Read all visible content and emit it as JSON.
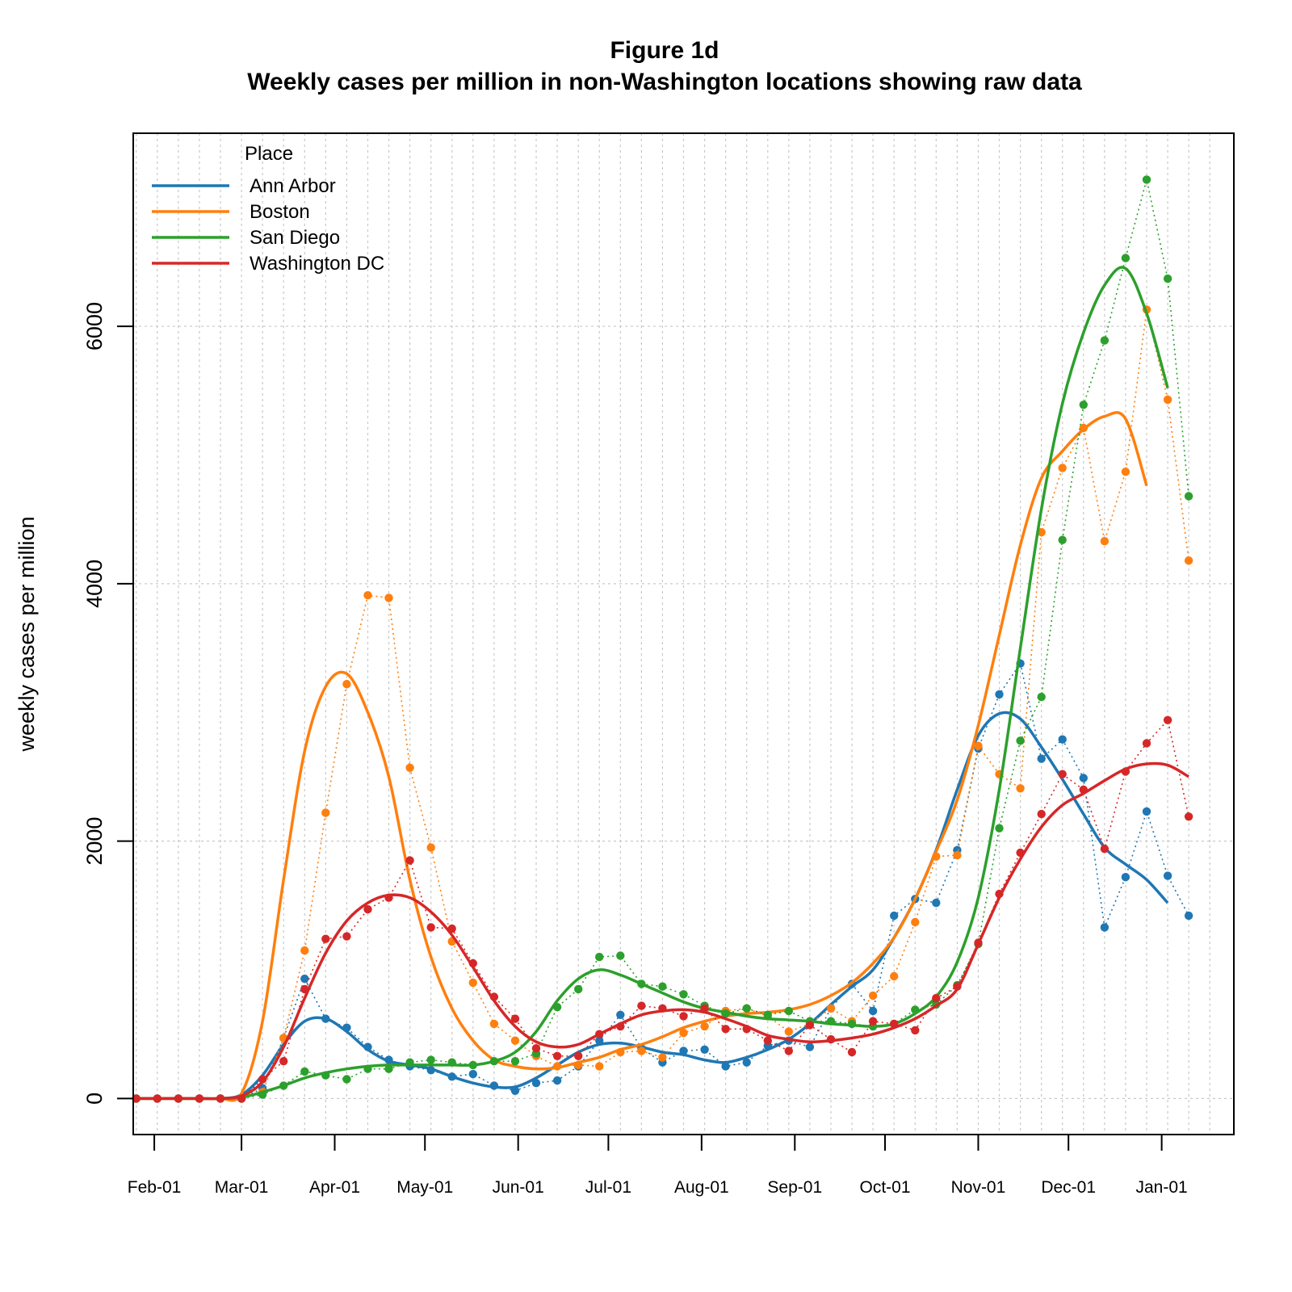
{
  "chart_data": {
    "type": "line",
    "title": "Figure 1d",
    "subtitle": "Weekly cases per million in non-Washington locations showing raw data",
    "xlabel": "",
    "ylabel": "weekly cases per million",
    "ylim": [
      -280,
      7500
    ],
    "yticks": [
      0,
      2000,
      4000,
      6000
    ],
    "xlim": [
      -7,
      359
    ],
    "xtick_labels": [
      "Feb-01",
      "Mar-01",
      "Apr-01",
      "May-01",
      "Jun-01",
      "Jul-01",
      "Aug-01",
      "Sep-01",
      "Oct-01",
      "Nov-01",
      "Dec-01",
      "Jan-01"
    ],
    "xtick_days": [
      0,
      29,
      60,
      90,
      121,
      151,
      182,
      213,
      243,
      274,
      304,
      335
    ],
    "grid": true,
    "legend": {
      "title": "Place",
      "position": "top-left"
    },
    "x_days": [
      -6,
      1,
      8,
      15,
      22,
      29,
      36,
      43,
      50,
      57,
      64,
      71,
      78,
      85,
      92,
      99,
      106,
      113,
      120,
      127,
      134,
      141,
      148,
      155,
      162,
      169,
      176,
      183,
      190,
      197,
      204,
      211,
      218,
      225,
      232,
      239,
      246,
      253,
      260,
      267,
      274,
      281,
      288,
      295,
      302,
      309,
      316,
      323,
      330,
      337,
      344,
      351
    ],
    "series": [
      {
        "name": "Ann Arbor",
        "color": "#1f77b4",
        "raw": [
          0,
          0,
          0,
          0,
          0,
          0,
          80,
          470,
          930,
          620,
          550,
          400,
          300,
          250,
          220,
          170,
          190,
          100,
          60,
          120,
          140,
          250,
          450,
          650,
          390,
          280,
          370,
          380,
          250,
          280,
          410,
          450,
          400,
          700,
          890,
          680,
          1420,
          1550,
          1520,
          1930,
          2720,
          3140,
          3380,
          2640,
          2790,
          2490,
          1330,
          1720,
          2230,
          1730,
          1420,
          null
        ],
        "smooth": [
          0,
          0,
          0,
          0,
          0,
          30,
          180,
          420,
          600,
          620,
          520,
          380,
          290,
          260,
          230,
          170,
          120,
          90,
          90,
          160,
          260,
          360,
          420,
          430,
          400,
          360,
          340,
          300,
          280,
          320,
          380,
          460,
          580,
          730,
          870,
          1000,
          1250,
          1550,
          1930,
          2400,
          2820,
          2990,
          2950,
          2730,
          2480,
          2210,
          1950,
          1820,
          1700,
          1520,
          null,
          null
        ]
      },
      {
        "name": "Boston",
        "color": "#ff7f0e",
        "raw": [
          0,
          0,
          0,
          0,
          0,
          0,
          50,
          470,
          1150,
          2220,
          3220,
          3910,
          3890,
          2570,
          1950,
          1220,
          900,
          580,
          450,
          330,
          250,
          260,
          250,
          360,
          370,
          320,
          510,
          560,
          680,
          700,
          640,
          520,
          580,
          700,
          600,
          800,
          950,
          1370,
          1880,
          1890,
          2740,
          2520,
          2410,
          4400,
          4900,
          5210,
          4330,
          4870,
          6130,
          5430,
          4180,
          null
        ],
        "smooth": [
          0,
          0,
          0,
          0,
          0,
          40,
          600,
          1700,
          2700,
          3200,
          3300,
          3000,
          2500,
          1700,
          1100,
          700,
          450,
          300,
          250,
          230,
          240,
          280,
          320,
          380,
          420,
          480,
          550,
          600,
          640,
          660,
          670,
          690,
          730,
          800,
          900,
          1050,
          1250,
          1550,
          1920,
          2320,
          2900,
          3600,
          4300,
          4820,
          5030,
          5200,
          5300,
          5280,
          4760,
          null,
          null,
          null
        ]
      },
      {
        "name": "San Diego",
        "color": "#2ca02c",
        "raw": [
          0,
          0,
          0,
          0,
          0,
          0,
          30,
          100,
          210,
          180,
          150,
          230,
          230,
          280,
          300,
          280,
          260,
          290,
          290,
          350,
          710,
          850,
          1100,
          1110,
          890,
          870,
          810,
          720,
          660,
          700,
          650,
          680,
          600,
          600,
          580,
          560,
          580,
          690,
          730,
          880,
          1200,
          2100,
          2780,
          3120,
          4340,
          5390,
          5890,
          6530,
          7140,
          6370,
          4680,
          null
        ],
        "smooth": [
          0,
          0,
          0,
          0,
          0,
          10,
          50,
          100,
          160,
          200,
          230,
          250,
          260,
          260,
          260,
          260,
          260,
          290,
          360,
          520,
          760,
          930,
          1000,
          960,
          890,
          820,
          750,
          700,
          670,
          640,
          620,
          610,
          600,
          580,
          570,
          560,
          580,
          660,
          790,
          1060,
          1560,
          2400,
          3500,
          4580,
          5400,
          5950,
          6320,
          6450,
          6100,
          5520,
          null,
          null
        ]
      },
      {
        "name": "Washington DC",
        "color": "#d62728",
        "raw": [
          0,
          0,
          0,
          0,
          0,
          0,
          150,
          290,
          850,
          1240,
          1260,
          1470,
          1560,
          1850,
          1330,
          1320,
          1050,
          790,
          620,
          390,
          330,
          330,
          500,
          560,
          720,
          700,
          640,
          700,
          540,
          540,
          450,
          370,
          570,
          460,
          360,
          600,
          580,
          530,
          780,
          870,
          1210,
          1590,
          1910,
          2210,
          2520,
          2400,
          1940,
          2540,
          2760,
          2940,
          2190,
          null
        ],
        "smooth": [
          0,
          0,
          0,
          0,
          0,
          20,
          130,
          400,
          780,
          1130,
          1380,
          1520,
          1580,
          1560,
          1450,
          1270,
          1020,
          760,
          560,
          440,
          400,
          420,
          500,
          580,
          650,
          680,
          690,
          670,
          620,
          560,
          490,
          460,
          440,
          450,
          470,
          500,
          550,
          620,
          720,
          850,
          1200,
          1560,
          1860,
          2110,
          2280,
          2370,
          2470,
          2560,
          2600,
          2590,
          2500,
          null
        ]
      }
    ]
  }
}
